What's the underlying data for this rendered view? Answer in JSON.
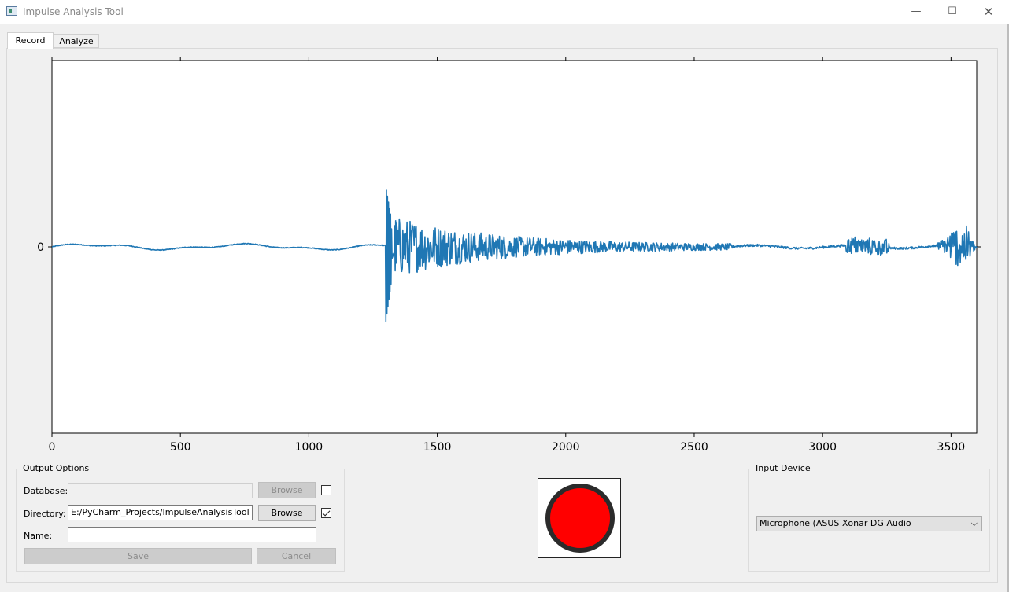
{
  "window": {
    "title": "Impulse Analysis Tool",
    "minimize_glyph": "—",
    "maximize_glyph": "☐",
    "close_glyph": "✕"
  },
  "tabs": [
    {
      "label": "Record",
      "active": true
    },
    {
      "label": "Analyze",
      "active": false
    }
  ],
  "chart_data": {
    "type": "line",
    "title": "",
    "xlabel": "",
    "ylabel": "",
    "xlim": [
      0,
      3600
    ],
    "ylim": [
      -1,
      1
    ],
    "x_ticks": [
      0,
      500,
      1000,
      1500,
      2000,
      2500,
      3000,
      3500
    ],
    "y_ticks": [
      0
    ],
    "grid": false,
    "line_color": "#1f77b4",
    "series": [
      {
        "segments": [
          {
            "x_start": 0,
            "x_end": 1300,
            "amplitude": 0.015,
            "description_shape": "slow ripple"
          },
          {
            "x_start": 1300,
            "x_end": 1320,
            "peak_max": 0.32,
            "peak_min": -0.4
          },
          {
            "x_start": 1320,
            "x_end": 2600,
            "amplitude_start": 0.18,
            "amplitude_end": 0.01
          },
          {
            "x_start": 3100,
            "x_end": 3250,
            "amplitude": 0.05
          },
          {
            "x_start": 3450,
            "x_end": 3600,
            "amplitude": 0.12
          }
        ]
      }
    ]
  },
  "output_options": {
    "title": "Output Options",
    "database_label": "Database:",
    "database_value": "",
    "database_browse": "Browse",
    "database_checked": false,
    "directory_label": "Directory:",
    "directory_value": "E:/PyCharm_Projects/ImpulseAnalysisTool",
    "directory_browse": "Browse",
    "directory_checked": true,
    "name_label": "Name:",
    "name_value": "",
    "save_label": "Save",
    "cancel_label": "Cancel"
  },
  "record_button": {
    "color": "#ff0000"
  },
  "input_device": {
    "title": "Input Device",
    "selected": "Microphone (ASUS Xonar DG Audio"
  }
}
